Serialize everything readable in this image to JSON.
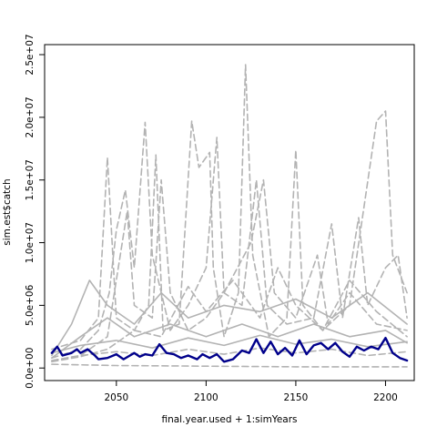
{
  "chart_data": {
    "type": "line",
    "xlabel": "final.year.used + 1:simYears",
    "ylabel": "sim.est$catch",
    "xlim": [
      2010,
      2216
    ],
    "ylim": [
      -1000000,
      25800000
    ],
    "x_ticks": [
      {
        "value": 2050,
        "label": "2050"
      },
      {
        "value": 2100,
        "label": "2100"
      },
      {
        "value": 2150,
        "label": "2150"
      },
      {
        "value": 2200,
        "label": "2200"
      }
    ],
    "y_ticks": [
      {
        "value": 0,
        "label": "0.0e+00"
      },
      {
        "value": 5000000,
        "label": "5.0e+06"
      },
      {
        "value": 10000000,
        "label": "1.0e+07"
      },
      {
        "value": 15000000,
        "label": "1.5e+07"
      },
      {
        "value": 20000000,
        "label": "2.0e+07"
      },
      {
        "value": 25000000,
        "label": "2.5e+07"
      }
    ],
    "colors": {
      "simulations": "#b3b3b3",
      "highlight": "#00008b"
    },
    "series": [
      {
        "style": "dashed",
        "color": "#b3b3b3",
        "points": [
          [
            2014,
            1500000
          ],
          [
            2030,
            2200000
          ],
          [
            2040,
            4000000
          ],
          [
            2045,
            16800000
          ],
          [
            2048,
            9000000
          ],
          [
            2050,
            4000000
          ],
          [
            2060,
            3000000
          ],
          [
            2068,
            5000000
          ],
          [
            2072,
            17000000
          ],
          [
            2076,
            3000000
          ],
          [
            2085,
            3500000
          ],
          [
            2092,
            19700000
          ],
          [
            2096,
            16000000
          ],
          [
            2102,
            17200000
          ],
          [
            2104,
            8000000
          ],
          [
            2110,
            2500000
          ],
          [
            2118,
            6000000
          ],
          [
            2122,
            24200000
          ],
          [
            2126,
            9000000
          ],
          [
            2135,
            2500000
          ],
          [
            2145,
            4000000
          ],
          [
            2150,
            17400000
          ],
          [
            2154,
            5000000
          ],
          [
            2165,
            3000000
          ],
          [
            2180,
            5000000
          ],
          [
            2195,
            19700000
          ],
          [
            2200,
            20500000
          ],
          [
            2204,
            9000000
          ],
          [
            2212,
            6000000
          ]
        ]
      },
      {
        "style": "dashed",
        "color": "#b3b3b3",
        "points": [
          [
            2014,
            800000
          ],
          [
            2030,
            1500000
          ],
          [
            2040,
            3000000
          ],
          [
            2046,
            6000000
          ],
          [
            2050,
            11000000
          ],
          [
            2055,
            14200000
          ],
          [
            2060,
            8000000
          ],
          [
            2066,
            19600000
          ],
          [
            2070,
            9000000
          ],
          [
            2080,
            3000000
          ],
          [
            2090,
            5000000
          ],
          [
            2100,
            8000000
          ],
          [
            2106,
            18400000
          ],
          [
            2110,
            6000000
          ],
          [
            2120,
            5000000
          ],
          [
            2128,
            15000000
          ],
          [
            2134,
            5000000
          ],
          [
            2145,
            3500000
          ],
          [
            2160,
            4000000
          ],
          [
            2170,
            11500000
          ],
          [
            2176,
            4000000
          ],
          [
            2185,
            12000000
          ],
          [
            2190,
            5000000
          ],
          [
            2200,
            8000000
          ],
          [
            2207,
            9000000
          ],
          [
            2212,
            4000000
          ]
        ]
      },
      {
        "style": "dashed",
        "color": "#b3b3b3",
        "points": [
          [
            2014,
            600000
          ],
          [
            2030,
            1000000
          ],
          [
            2045,
            2500000
          ],
          [
            2056,
            12500000
          ],
          [
            2060,
            5000000
          ],
          [
            2070,
            4000000
          ],
          [
            2075,
            15000000
          ],
          [
            2080,
            6000000
          ],
          [
            2090,
            3000000
          ],
          [
            2100,
            4000000
          ],
          [
            2110,
            6000000
          ],
          [
            2125,
            10000000
          ],
          [
            2132,
            15000000
          ],
          [
            2138,
            6000000
          ],
          [
            2150,
            4000000
          ],
          [
            2162,
            9000000
          ],
          [
            2168,
            3500000
          ],
          [
            2180,
            6000000
          ],
          [
            2195,
            3500000
          ],
          [
            2212,
            3000000
          ]
        ]
      },
      {
        "style": "dashed",
        "color": "#b3b3b3",
        "points": [
          [
            2014,
            500000
          ],
          [
            2030,
            900000
          ],
          [
            2045,
            1500000
          ],
          [
            2060,
            3000000
          ],
          [
            2075,
            2500000
          ],
          [
            2090,
            6500000
          ],
          [
            2100,
            4500000
          ],
          [
            2115,
            7000000
          ],
          [
            2130,
            4000000
          ],
          [
            2140,
            8000000
          ],
          [
            2150,
            5000000
          ],
          [
            2165,
            3000000
          ],
          [
            2180,
            7000000
          ],
          [
            2195,
            4500000
          ],
          [
            2212,
            2500000
          ]
        ]
      },
      {
        "style": "solid",
        "color": "#b3b3b3",
        "points": [
          [
            2014,
            1000000
          ],
          [
            2025,
            3500000
          ],
          [
            2035,
            7000000
          ],
          [
            2045,
            5000000
          ],
          [
            2060,
            3500000
          ],
          [
            2075,
            6000000
          ],
          [
            2090,
            4000000
          ],
          [
            2110,
            5000000
          ],
          [
            2130,
            4500000
          ],
          [
            2150,
            5500000
          ],
          [
            2170,
            4000000
          ],
          [
            2190,
            6000000
          ],
          [
            2212,
            3500000
          ]
        ]
      },
      {
        "style": "solid",
        "color": "#b3b3b3",
        "points": [
          [
            2014,
            800000
          ],
          [
            2030,
            2500000
          ],
          [
            2045,
            4000000
          ],
          [
            2060,
            2500000
          ],
          [
            2080,
            3500000
          ],
          [
            2100,
            2500000
          ],
          [
            2120,
            3500000
          ],
          [
            2140,
            2500000
          ],
          [
            2160,
            3500000
          ],
          [
            2180,
            2500000
          ],
          [
            2200,
            3000000
          ],
          [
            2212,
            2000000
          ]
        ]
      },
      {
        "style": "solid",
        "color": "#b3b3b3",
        "points": [
          [
            2014,
            1200000
          ],
          [
            2030,
            1800000
          ],
          [
            2050,
            2200000
          ],
          [
            2070,
            1600000
          ],
          [
            2090,
            2400000
          ],
          [
            2110,
            1800000
          ],
          [
            2130,
            2600000
          ],
          [
            2150,
            1900000
          ],
          [
            2170,
            2300000
          ],
          [
            2190,
            1700000
          ],
          [
            2212,
            2100000
          ]
        ]
      },
      {
        "style": "dashed",
        "color": "#b3b3b3",
        "points": [
          [
            2014,
            600000
          ],
          [
            2030,
            1000000
          ],
          [
            2050,
            1300000
          ],
          [
            2070,
            1000000
          ],
          [
            2090,
            1500000
          ],
          [
            2110,
            1100000
          ],
          [
            2130,
            1600000
          ],
          [
            2150,
            1200000
          ],
          [
            2170,
            1500000
          ],
          [
            2190,
            1000000
          ],
          [
            2212,
            1300000
          ]
        ]
      },
      {
        "style": "dashed",
        "color": "#b3b3b3",
        "points": [
          [
            2014,
            300000
          ],
          [
            2050,
            200000
          ],
          [
            2100,
            150000
          ],
          [
            2150,
            100000
          ],
          [
            2212,
            100000
          ]
        ]
      },
      {
        "style": "solid",
        "color": "#00008b",
        "highlight": true,
        "points": [
          [
            2014,
            1200000
          ],
          [
            2017,
            1700000
          ],
          [
            2020,
            1000000
          ],
          [
            2025,
            1200000
          ],
          [
            2028,
            1500000
          ],
          [
            2030,
            1200000
          ],
          [
            2034,
            1500000
          ],
          [
            2038,
            1000000
          ],
          [
            2040,
            700000
          ],
          [
            2045,
            800000
          ],
          [
            2050,
            1100000
          ],
          [
            2054,
            700000
          ],
          [
            2060,
            1200000
          ],
          [
            2063,
            900000
          ],
          [
            2066,
            1100000
          ],
          [
            2070,
            1000000
          ],
          [
            2074,
            1900000
          ],
          [
            2078,
            1200000
          ],
          [
            2082,
            1100000
          ],
          [
            2086,
            800000
          ],
          [
            2090,
            1000000
          ],
          [
            2095,
            700000
          ],
          [
            2098,
            1100000
          ],
          [
            2102,
            800000
          ],
          [
            2106,
            1100000
          ],
          [
            2110,
            500000
          ],
          [
            2115,
            700000
          ],
          [
            2120,
            1400000
          ],
          [
            2124,
            1200000
          ],
          [
            2128,
            2300000
          ],
          [
            2132,
            1200000
          ],
          [
            2136,
            2100000
          ],
          [
            2140,
            1100000
          ],
          [
            2144,
            1600000
          ],
          [
            2148,
            1000000
          ],
          [
            2152,
            2200000
          ],
          [
            2156,
            1100000
          ],
          [
            2160,
            1800000
          ],
          [
            2164,
            2000000
          ],
          [
            2168,
            1500000
          ],
          [
            2172,
            2000000
          ],
          [
            2176,
            1300000
          ],
          [
            2180,
            900000
          ],
          [
            2184,
            1700000
          ],
          [
            2188,
            1400000
          ],
          [
            2192,
            1700000
          ],
          [
            2196,
            1500000
          ],
          [
            2200,
            2400000
          ],
          [
            2204,
            1200000
          ],
          [
            2208,
            800000
          ],
          [
            2212,
            600000
          ]
        ]
      }
    ]
  }
}
